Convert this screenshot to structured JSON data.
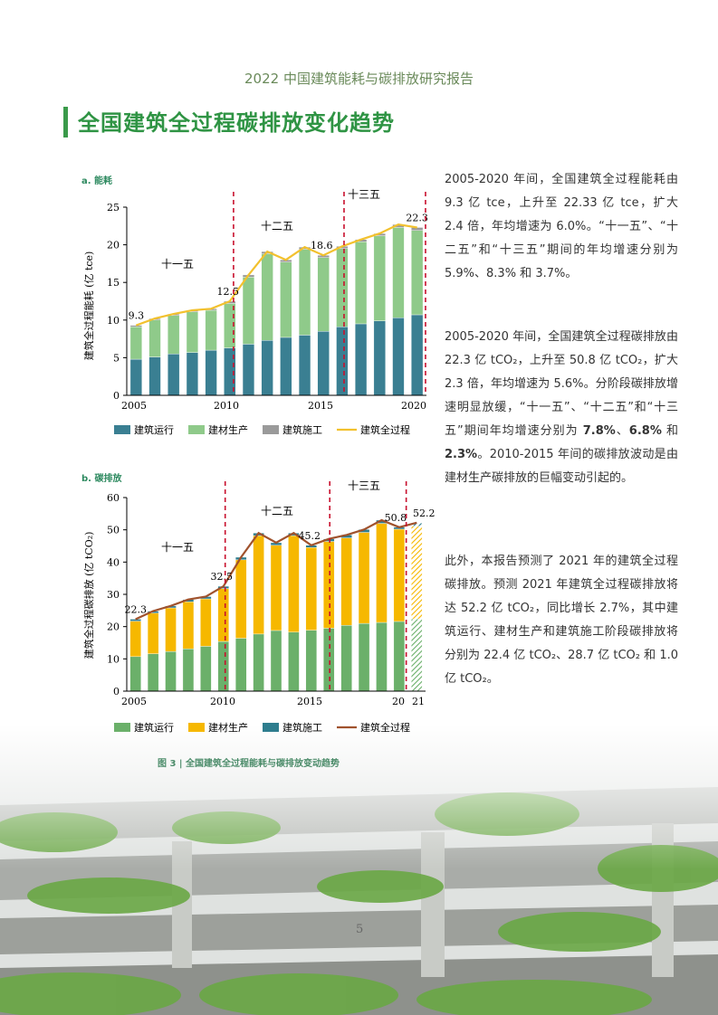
{
  "header": "2022 中国建筑能耗与碳排放研究报告",
  "title": "全国建筑全过程碳排放变化趋势",
  "caption": "图 3 | 全国建筑全过程能耗与碳排放变动趋势",
  "page_number": "5",
  "text": {
    "p1": "2005-2020 年间，全国建筑全过程能耗由 9.3 亿 tce，上升至 22.33 亿 tce，扩大 2.4 倍，年均增速为 6.0%。“十一五”、“十二五”和“十三五”期间的年均增速分别为 5.9%、8.3% 和 3.7%。",
    "p2_a": "2005-2020 年间，全国建筑全过程碳排放由 22.3 亿 tCO₂，上升至 50.8 亿 tCO₂，扩大 2.3 倍，年均增速为 5.6%。分阶段碳排放增速明显放缓，“十一五”、“十二五”和“十三五”期间年均增速分别为 ",
    "p2_b1": "7.8%",
    "p2_sep1": "、",
    "p2_b2": "6.8%",
    "p2_and": " 和 ",
    "p2_b3": "2.3%",
    "p2_c": "。2010-2015 年间的碳排放波动是由建材生产碳排放的巨幅变动引起的。",
    "p3": "此外，本报告预测了 2021 年的建筑全过程碳排放。预测 2021 年建筑全过程碳排放将达 52.2 亿 tCO₂，同比增长 2.7%，其中建筑运行、建材生产和建筑施工阶段碳排放将分别为 22.4 亿 tCO₂、28.7 亿 tCO₂ 和 1.0 亿 tCO₂。"
  },
  "colors": {
    "title_green": "#2f9444",
    "run_teal": "#3a7f92",
    "mat_green": "#8fca8a",
    "cons_gray": "#9a9a9a",
    "line_gold": "#f2c12e",
    "run_green": "#6bb06a",
    "mat_gold": "#f6b800",
    "cons_teal": "#2e7d8e",
    "line_brown": "#a0522d",
    "divider_red": "#c8102e"
  },
  "chart_data": [
    {
      "type": "bar",
      "subtype": "stacked+line",
      "panel_label": "a. 能耗",
      "ylabel": "建筑全过程能耗 (亿 tce)",
      "ylim": [
        0,
        25
      ],
      "yticks": [
        "0",
        "5",
        "10",
        "15",
        "20",
        "25"
      ],
      "xticks": [
        "2005",
        "2010",
        "2015",
        "2020"
      ],
      "x": [
        2005,
        2006,
        2007,
        2008,
        2009,
        2010,
        2011,
        2012,
        2013,
        2014,
        2015,
        2016,
        2017,
        2018,
        2019,
        2020
      ],
      "series": [
        {
          "name": "建筑运行",
          "values": [
            4.8,
            5.1,
            5.5,
            5.7,
            6.0,
            6.3,
            6.8,
            7.3,
            7.7,
            8.0,
            8.5,
            9.1,
            9.5,
            9.9,
            10.3,
            10.7
          ]
        },
        {
          "name": "建材生产",
          "values": [
            4.3,
            4.9,
            5.1,
            5.4,
            5.3,
            5.9,
            8.9,
            11.5,
            10.0,
            11.4,
            9.8,
            10.4,
            10.9,
            11.3,
            12.0,
            11.2
          ]
        },
        {
          "name": "建筑施工",
          "values": [
            0.2,
            0.2,
            0.2,
            0.2,
            0.2,
            0.3,
            0.3,
            0.3,
            0.3,
            0.3,
            0.3,
            0.3,
            0.3,
            0.3,
            0.4,
            0.4
          ]
        },
        {
          "name": "建筑全过程",
          "type": "line",
          "values": [
            9.3,
            10.2,
            10.8,
            11.3,
            11.5,
            12.5,
            16.0,
            19.1,
            18.0,
            19.7,
            18.6,
            19.8,
            20.7,
            21.5,
            22.7,
            22.3
          ]
        }
      ],
      "annotations": [
        "9.3",
        "12.5",
        "18.6",
        "22.3"
      ],
      "periods": [
        "十一五",
        "十二五",
        "十三五"
      ]
    },
    {
      "type": "bar",
      "subtype": "stacked+line",
      "panel_label": "b. 碳排放",
      "ylabel": "建筑全过程碳排放 (亿 tCO₂)",
      "ylim": [
        0,
        60
      ],
      "yticks": [
        "0",
        "10",
        "20",
        "30",
        "40",
        "50",
        "60"
      ],
      "xticks": [
        "2005",
        "2010",
        "2015",
        "20",
        "21"
      ],
      "x": [
        2005,
        2006,
        2007,
        2008,
        2009,
        2010,
        2011,
        2012,
        2013,
        2014,
        2015,
        2016,
        2017,
        2018,
        2019,
        2020,
        2021
      ],
      "series": [
        {
          "name": "建筑运行",
          "values": [
            10.7,
            11.6,
            12.3,
            13.1,
            13.9,
            15.4,
            16.4,
            17.7,
            18.8,
            18.3,
            18.9,
            19.5,
            20.4,
            21.0,
            21.3,
            21.6,
            22.4
          ]
        },
        {
          "name": "建材生产",
          "values": [
            11.0,
            12.6,
            13.5,
            14.6,
            14.7,
            16.4,
            24.3,
            30.5,
            26.4,
            29.9,
            25.6,
            26.9,
            27.1,
            28.2,
            30.7,
            28.6,
            28.7
          ]
        },
        {
          "name": "建筑施工",
          "values": [
            0.6,
            0.6,
            0.6,
            0.7,
            0.7,
            0.7,
            0.8,
            0.8,
            0.8,
            0.8,
            0.7,
            0.8,
            0.9,
            0.9,
            1.0,
            0.6,
            1.0
          ]
        },
        {
          "name": "建筑全过程",
          "type": "line",
          "values": [
            22.3,
            24.8,
            26.4,
            28.4,
            29.3,
            32.5,
            41.5,
            49.0,
            46.0,
            49.0,
            45.2,
            47.2,
            48.4,
            50.1,
            53.0,
            50.8,
            52.2
          ]
        }
      ],
      "annotations": [
        "22.3",
        "32.5",
        "45.2",
        "50.8",
        "52.2"
      ],
      "periods": [
        "十一五",
        "十二五",
        "十三五"
      ],
      "forecast_year": 2021
    }
  ]
}
